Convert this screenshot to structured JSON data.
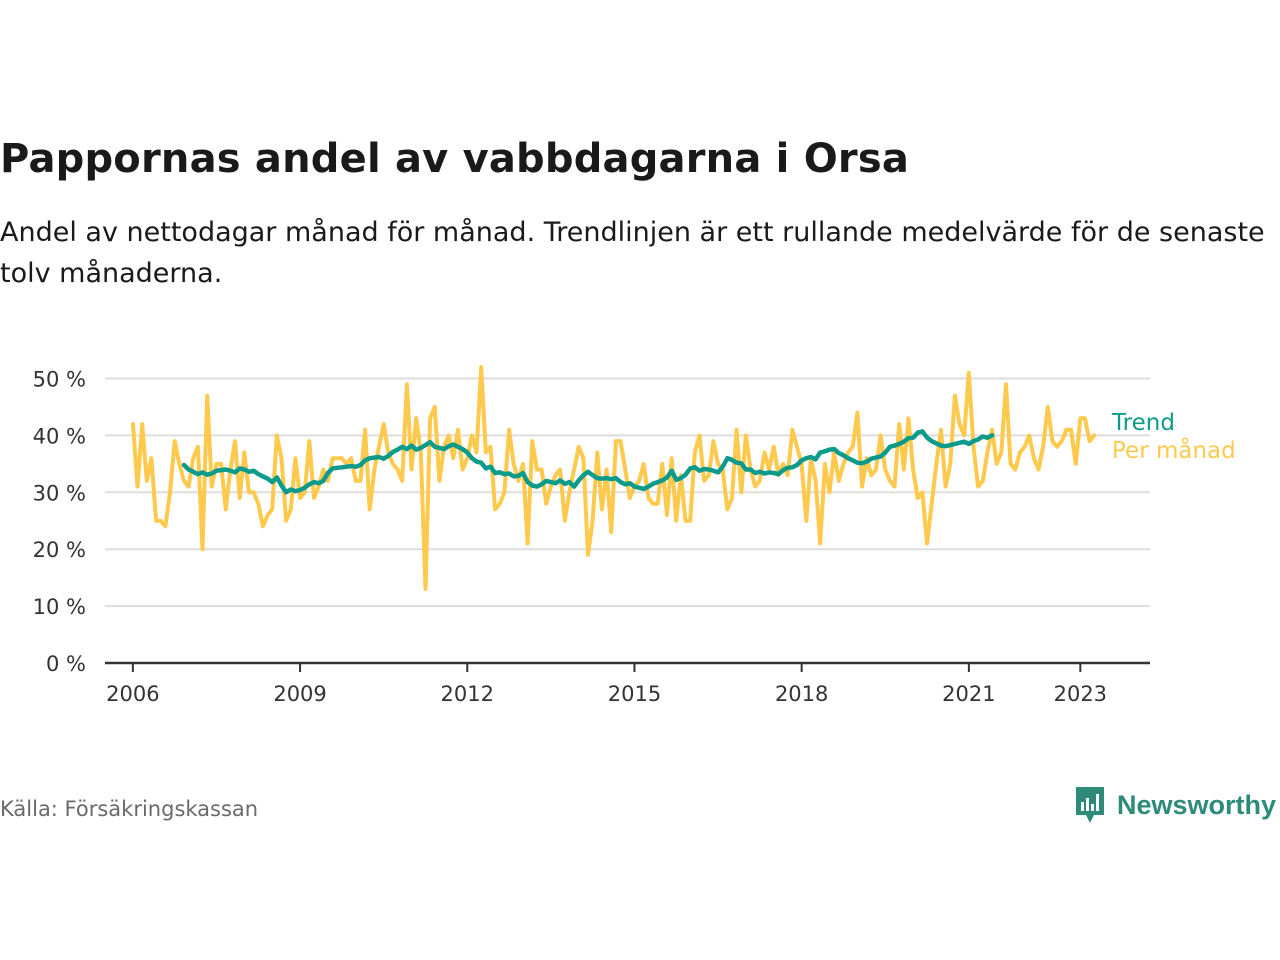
{
  "header": {
    "title": "Pappornas andel av vabbdagarna i Orsa",
    "subtitle": "Andel av nettodagar månad för månad. Trendlinjen är ett rullande medelvärde för de senaste tolv månaderna."
  },
  "footer": {
    "source": "Källa: Försäkringskassan",
    "brand": "Newsworthy"
  },
  "colors": {
    "monthly": "#ffc94d",
    "trend": "#0c9a8a",
    "grid": "#dddddd",
    "axis": "#333333",
    "brand": "#2e8b7a"
  },
  "chart_data": {
    "type": "line",
    "title": "",
    "xlabel": "",
    "ylabel": "",
    "xlim": [
      2005.5,
      2024.25
    ],
    "ylim": [
      0,
      50
    ],
    "y_ticks": [
      0,
      10,
      20,
      30,
      40,
      50
    ],
    "y_tick_labels": [
      "0 %",
      "10 %",
      "20 %",
      "30 %",
      "40 %",
      "50 %"
    ],
    "x_ticks": [
      2006,
      2009,
      2012,
      2015,
      2018,
      2021,
      2023
    ],
    "x_tick_labels": [
      "2006",
      "2009",
      "2012",
      "2015",
      "2018",
      "2021",
      "2023"
    ],
    "grid": true,
    "legend": "end-of-line labels, right",
    "series": [
      {
        "name": "Per månad",
        "key": "monthly",
        "x_start": 2006.0,
        "x_step": 0.08333,
        "values": [
          42,
          31,
          42,
          32,
          36,
          25,
          25,
          24,
          30,
          39,
          35,
          32,
          31,
          36,
          38,
          20,
          47,
          31,
          35,
          35,
          27,
          34,
          39,
          29,
          37,
          30,
          30,
          28,
          24,
          26,
          27,
          40,
          36,
          25,
          27,
          36,
          29,
          30,
          39,
          29,
          31,
          34,
          32,
          36,
          36,
          36,
          35,
          36,
          32,
          32,
          41,
          27,
          34,
          38,
          42,
          37,
          35,
          34,
          32,
          49,
          34,
          43,
          37,
          13,
          43,
          45,
          32,
          38,
          40,
          36,
          41,
          34,
          36,
          40,
          37,
          52,
          37,
          38,
          27,
          28,
          30,
          41,
          35,
          32,
          35,
          21,
          39,
          34,
          34,
          28,
          31,
          33,
          34,
          25,
          30,
          34,
          38,
          36,
          19,
          25,
          37,
          27,
          34,
          23,
          39,
          39,
          34,
          29,
          31,
          32,
          35,
          29,
          28,
          28,
          35,
          26,
          36,
          25,
          33,
          25,
          25,
          37,
          40,
          32,
          33,
          39,
          35,
          34,
          27,
          29,
          41,
          30,
          40,
          34,
          31,
          32,
          37,
          34,
          38,
          33,
          35,
          33,
          41,
          38,
          35,
          25,
          36,
          32,
          21,
          35,
          30,
          37,
          32,
          35,
          37,
          38,
          44,
          31,
          36,
          33,
          34,
          40,
          34,
          32,
          31,
          42,
          34,
          43,
          34,
          29,
          30,
          21,
          28,
          35,
          41,
          31,
          35,
          47,
          42,
          40,
          51,
          38,
          31,
          32,
          37,
          41,
          35,
          37,
          49,
          35,
          34,
          37,
          38,
          40,
          36,
          34,
          38,
          45,
          39,
          38,
          39,
          41,
          41,
          35,
          43,
          43,
          39,
          40
        ]
      },
      {
        "name": "Trend",
        "key": "trend",
        "x_start": 2006.917,
        "x_step": 0.08333,
        "values": [
          34.8,
          34,
          33.6,
          33.2,
          33.5,
          33.1,
          33.3,
          33.8,
          33.9,
          34,
          33.8,
          33.5,
          34.2,
          34,
          33.6,
          33.8,
          33.2,
          32.8,
          32.4,
          31.8,
          32.6,
          31.2,
          30,
          30.5,
          30.2,
          30.4,
          30.8,
          31.4,
          31.8,
          31.6,
          32,
          33.4,
          34.2,
          34.3,
          34.4,
          34.5,
          34.6,
          34.5,
          34.8,
          35.6,
          36,
          36.1,
          36.2,
          35.9,
          36.4,
          37.1,
          37.5,
          38,
          37.6,
          38.2,
          37.5,
          37.8,
          38.3,
          38.8,
          38,
          37.8,
          37.6,
          38.1,
          38.4,
          38,
          37.6,
          37,
          36,
          35.4,
          35.2,
          34.2,
          34.5,
          33.4,
          33.5,
          33.2,
          33.3,
          32.8,
          32.9,
          33.4,
          31.8,
          31.2,
          31,
          31.4,
          32,
          31.8,
          31.6,
          32.1,
          31.5,
          31.8,
          31,
          32.1,
          33,
          33.6,
          33,
          32.5,
          32.4,
          32.5,
          32.3,
          32.5,
          31.8,
          31.4,
          31.6,
          31,
          30.8,
          30.6,
          31,
          31.5,
          31.8,
          32.1,
          32.6,
          33.8,
          32.2,
          32.5,
          33.1,
          34.2,
          34.4,
          33.8,
          34.1,
          34,
          33.8,
          33.5,
          34.5,
          36,
          35.7,
          35.2,
          35.1,
          34,
          34,
          33.4,
          33.6,
          33.3,
          33.5,
          33.4,
          33.2,
          33.9,
          34.3,
          34.4,
          34.8,
          35.6,
          36,
          36.2,
          35.8,
          37,
          37.2,
          37.5,
          37.6,
          36.9,
          36.5,
          36,
          35.6,
          35.2,
          35.1,
          35.4,
          35.9,
          36.1,
          36.3,
          37,
          38,
          38.2,
          38.5,
          38.9,
          39.5,
          39.6,
          40.5,
          40.7,
          39.6,
          39,
          38.6,
          38.2,
          38.1,
          38.3,
          38.5,
          38.7,
          38.9,
          38.5,
          39,
          39.3,
          39.8,
          39.6,
          40
        ]
      }
    ]
  }
}
